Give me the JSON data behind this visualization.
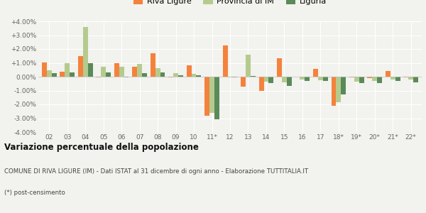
{
  "categories": [
    "02",
    "03",
    "04",
    "05",
    "06",
    "07",
    "08",
    "09",
    "10",
    "11*",
    "12",
    "13",
    "14",
    "15",
    "16",
    "17",
    "18*",
    "19*",
    "20*",
    "21*",
    "22*"
  ],
  "riva_ligure": [
    1.05,
    0.35,
    1.5,
    -0.05,
    1.0,
    0.7,
    1.7,
    -0.05,
    0.8,
    -2.8,
    2.25,
    -0.7,
    -1.05,
    1.35,
    -0.02,
    0.55,
    -2.1,
    -0.05,
    -0.1,
    0.4,
    -0.05
  ],
  "provincia_im": [
    0.45,
    0.95,
    3.6,
    0.7,
    0.7,
    0.9,
    0.6,
    0.25,
    0.2,
    -2.6,
    -0.05,
    1.6,
    -0.35,
    -0.4,
    -0.2,
    -0.25,
    -1.85,
    -0.35,
    -0.3,
    -0.2,
    -0.2
  ],
  "liguria": [
    0.25,
    0.3,
    0.95,
    0.3,
    -0.05,
    0.25,
    0.3,
    0.1,
    0.1,
    -3.1,
    -0.05,
    0.05,
    -0.45,
    -0.65,
    -0.3,
    -0.3,
    -1.3,
    -0.45,
    -0.45,
    -0.3,
    -0.4
  ],
  "color_riva": "#f4823c",
  "color_provincia": "#b5cb8e",
  "color_liguria": "#5a8a5a",
  "bg_color": "#f2f2ee",
  "grid_color": "#ffffff",
  "ylim": [
    -4.0,
    4.0
  ],
  "yticks": [
    -4.0,
    -3.0,
    -2.0,
    -1.0,
    0.0,
    1.0,
    2.0,
    3.0,
    4.0
  ],
  "ytick_labels": [
    "-4.00%",
    "-3.00%",
    "-2.00%",
    "-1.00%",
    "0.00%",
    "+1.00%",
    "+2.00%",
    "+3.00%",
    "+4.00%"
  ],
  "title": "Variazione percentuale della popolazione",
  "subtitle": "COMUNE DI RIVA LIGURE (IM) - Dati ISTAT al 31 dicembre di ogni anno - Elaborazione TUTTITALIA.IT",
  "footnote": "(*) post-censimento",
  "legend_labels": [
    "Riva Ligure",
    "Provincia di IM",
    "Liguria"
  ],
  "bar_width": 0.27
}
